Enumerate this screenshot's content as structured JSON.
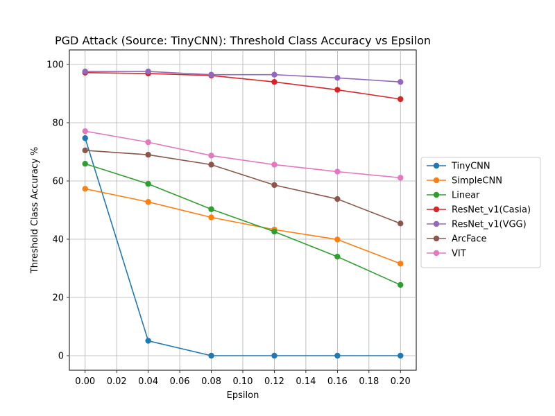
{
  "chart_data": {
    "type": "line",
    "title": "PGD Attack (Source: TinyCNN): Threshold Class Accuracy vs Epsilon",
    "xlabel": "Epsilon",
    "ylabel": "Threshold Class Accuracy %",
    "x": [
      0.0,
      0.04,
      0.08,
      0.12,
      0.16,
      0.2
    ],
    "x_ticks": [
      0.0,
      0.02,
      0.04,
      0.06,
      0.08,
      0.1,
      0.12,
      0.14,
      0.16,
      0.18,
      0.2
    ],
    "x_tick_labels": [
      "0.00",
      "0.02",
      "0.04",
      "0.06",
      "0.08",
      "0.10",
      "0.12",
      "0.14",
      "0.16",
      "0.18",
      "0.20"
    ],
    "y_ticks": [
      0,
      20,
      40,
      60,
      80,
      100
    ],
    "y_tick_labels": [
      "0",
      "20",
      "40",
      "60",
      "80",
      "100"
    ],
    "xlim": [
      -0.01,
      0.21
    ],
    "ylim": [
      -5,
      105
    ],
    "grid": true,
    "legend_position": "right-outside",
    "series": [
      {
        "name": "TinyCNN",
        "color": "#1f77b4",
        "values": [
          74.7,
          5.1,
          0.0,
          0.0,
          0.0,
          0.0
        ]
      },
      {
        "name": "SimpleCNN",
        "color": "#ff7f0e",
        "values": [
          57.3,
          52.8,
          47.5,
          43.3,
          39.9,
          31.6
        ]
      },
      {
        "name": "Linear",
        "color": "#2ca02c",
        "values": [
          65.9,
          59.0,
          50.3,
          42.6,
          34.0,
          24.3
        ]
      },
      {
        "name": "ResNet_v1(Casia)",
        "color": "#d62728",
        "values": [
          97.2,
          96.9,
          96.2,
          94.0,
          91.3,
          88.1
        ]
      },
      {
        "name": "ResNet_v1(VGG)",
        "color": "#9467bd",
        "values": [
          97.6,
          97.6,
          96.5,
          96.5,
          95.4,
          94.0
        ]
      },
      {
        "name": "ArcFace",
        "color": "#8c564b",
        "values": [
          70.5,
          69.0,
          65.6,
          58.6,
          53.8,
          45.4
        ]
      },
      {
        "name": "VIT",
        "color": "#e377c2",
        "values": [
          77.1,
          73.3,
          68.7,
          65.6,
          63.2,
          61.1
        ]
      }
    ]
  }
}
